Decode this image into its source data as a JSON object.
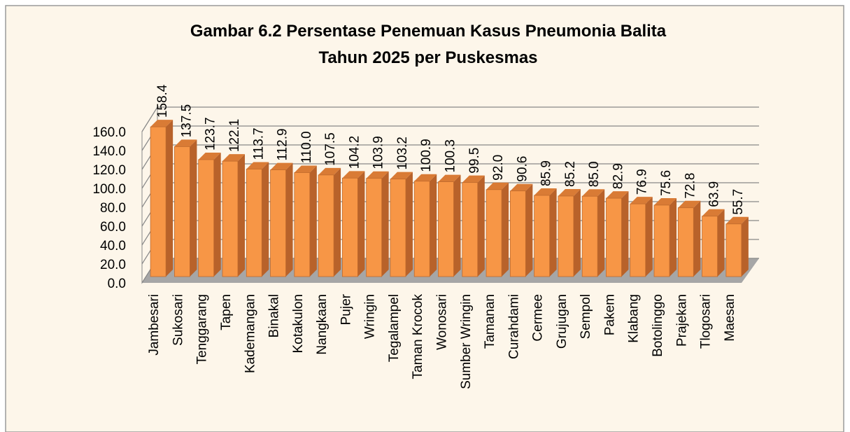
{
  "chart_data": {
    "type": "bar3d",
    "title": [
      "Gambar 6.2 Persentase Penemuan Kasus Pneumonia Balita",
      "Tahun 2025 per Puskesmas"
    ],
    "categories": [
      "Jambesari",
      "Sukosari",
      "Tenggarang",
      "Tapen",
      "Kademangan",
      "Binakal",
      "Kotakulon",
      "Nangkaan",
      "Pujer",
      "Wringin",
      "Tegalampel",
      "Taman Krocok",
      "Wonosari",
      "Sumber Wringin",
      "Tamanan",
      "Curahdami",
      "Cermee",
      "Grujugan",
      "Sempol",
      "Pakem",
      "Klabang",
      "Botolinggo",
      "Prajekan",
      "Tlogosari",
      "Maesan"
    ],
    "values": [
      158.4,
      137.5,
      123.7,
      122.1,
      113.7,
      112.9,
      110.0,
      107.5,
      104.2,
      103.9,
      103.2,
      100.9,
      100.3,
      99.5,
      92.0,
      90.6,
      85.9,
      85.2,
      85.0,
      82.9,
      76.9,
      75.6,
      72.8,
      63.9,
      55.7
    ],
    "value_labels": [
      "158.4",
      "137.5",
      "123.7",
      "122.1",
      "113.7",
      "112.9",
      "110.0",
      "107.5",
      "104.2",
      "103.9",
      "103.2",
      "100.9",
      "100.3",
      "99.5",
      "92.0",
      "90.6",
      "85.9",
      "85.2",
      "85.0",
      "82.9",
      "76.9",
      "75.6",
      "72.8",
      "63.9",
      "55.7"
    ],
    "color": "#f79646",
    "ylim": [
      0,
      160
    ],
    "yticks": [
      {
        "value": 0,
        "label": "0.0"
      },
      {
        "value": 20,
        "label": "20.0"
      },
      {
        "value": 40,
        "label": "40.0"
      },
      {
        "value": 60,
        "label": "60.0"
      },
      {
        "value": 80,
        "label": "80.0"
      },
      {
        "value": 100,
        "label": "100.0"
      },
      {
        "value": 120,
        "label": "120.0"
      },
      {
        "value": 140,
        "label": "140.0"
      },
      {
        "value": 160,
        "label": "160.0"
      }
    ],
    "grid": true
  }
}
